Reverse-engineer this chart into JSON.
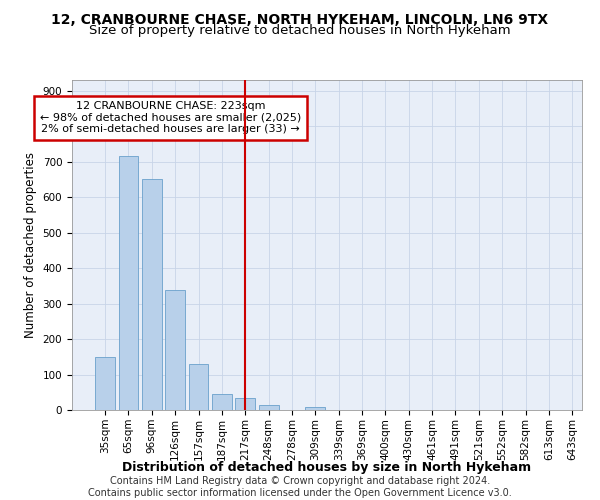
{
  "title": "12, CRANBOURNE CHASE, NORTH HYKEHAM, LINCOLN, LN6 9TX",
  "subtitle": "Size of property relative to detached houses in North Hykeham",
  "xlabel": "Distribution of detached houses by size in North Hykeham",
  "ylabel": "Number of detached properties",
  "categories": [
    "35sqm",
    "65sqm",
    "96sqm",
    "126sqm",
    "157sqm",
    "187sqm",
    "217sqm",
    "248sqm",
    "278sqm",
    "309sqm",
    "339sqm",
    "369sqm",
    "400sqm",
    "430sqm",
    "461sqm",
    "491sqm",
    "521sqm",
    "552sqm",
    "582sqm",
    "613sqm",
    "643sqm"
  ],
  "bar_heights": [
    150,
    715,
    650,
    338,
    130,
    45,
    33,
    15,
    0,
    8,
    0,
    0,
    0,
    0,
    0,
    0,
    0,
    0,
    0,
    0
  ],
  "bar_color": "#b8d0ea",
  "bar_edge_color": "#6aa0cc",
  "vline_x": 6,
  "vline_color": "#cc0000",
  "annotation_text": "12 CRANBOURNE CHASE: 223sqm\n← 98% of detached houses are smaller (2,025)\n2% of semi-detached houses are larger (33) →",
  "annotation_box_color": "#cc0000",
  "annotation_bg": "#ffffff",
  "ylim": [
    0,
    930
  ],
  "yticks": [
    0,
    100,
    200,
    300,
    400,
    500,
    600,
    700,
    800,
    900
  ],
  "footer_text": "Contains HM Land Registry data © Crown copyright and database right 2024.\nContains public sector information licensed under the Open Government Licence v3.0.",
  "grid_color": "#c8d4e8",
  "bg_color": "#e8eef8",
  "title_fontsize": 10,
  "subtitle_fontsize": 9.5,
  "xlabel_fontsize": 9,
  "ylabel_fontsize": 8.5,
  "tick_fontsize": 7.5,
  "annotation_fontsize": 8,
  "footer_fontsize": 7
}
